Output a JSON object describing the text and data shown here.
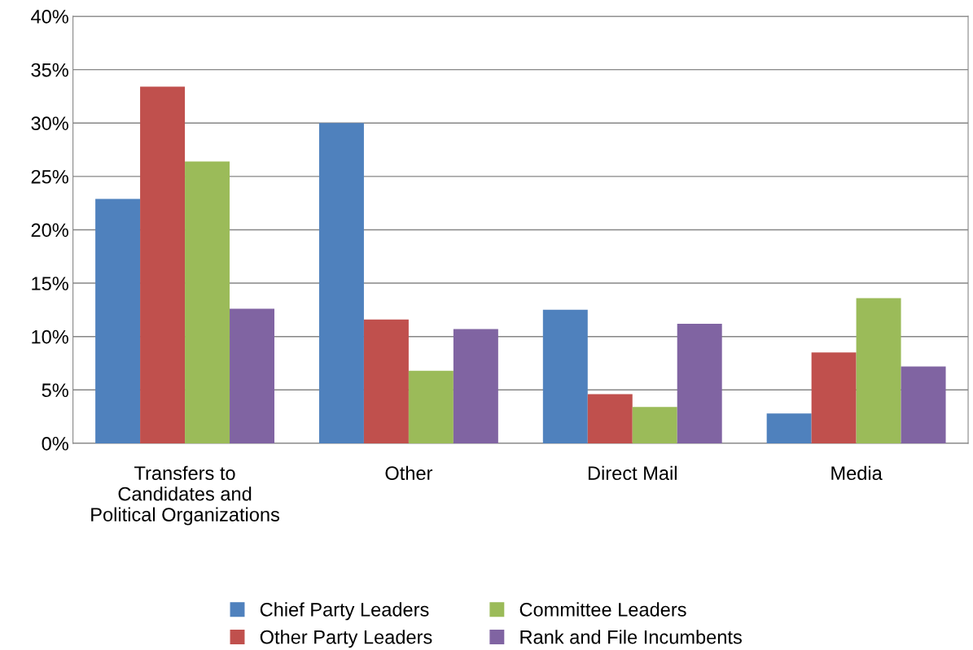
{
  "chart_data": {
    "type": "bar",
    "categories": [
      "Transfers to\nCandidates and\nPolitical Organizations",
      "Other",
      "Direct Mail",
      "Media"
    ],
    "series": [
      {
        "name": "Chief Party Leaders",
        "color": "#4f81bd",
        "values": [
          22.9,
          30.0,
          12.5,
          2.8
        ]
      },
      {
        "name": "Other Party Leaders",
        "color": "#c0504d",
        "values": [
          33.4,
          11.6,
          4.6,
          8.5
        ]
      },
      {
        "name": "Committee Leaders",
        "color": "#9bbb59",
        "values": [
          26.4,
          6.8,
          3.4,
          13.6
        ]
      },
      {
        "name": "Rank and File Incumbents",
        "color": "#8064a2",
        "values": [
          12.6,
          10.7,
          11.2,
          7.2
        ]
      }
    ],
    "ylim": [
      0,
      40
    ],
    "yticks": [
      {
        "value": 0,
        "label": "0%"
      },
      {
        "value": 5,
        "label": "5%"
      },
      {
        "value": 10,
        "label": "10%"
      },
      {
        "value": 15,
        "label": "15%"
      },
      {
        "value": 20,
        "label": "20%"
      },
      {
        "value": 25,
        "label": "25%"
      },
      {
        "value": 30,
        "label": "30%"
      },
      {
        "value": 35,
        "label": "35%"
      },
      {
        "value": 40,
        "label": "40%"
      }
    ],
    "grid": "y",
    "legend": "bottom"
  }
}
